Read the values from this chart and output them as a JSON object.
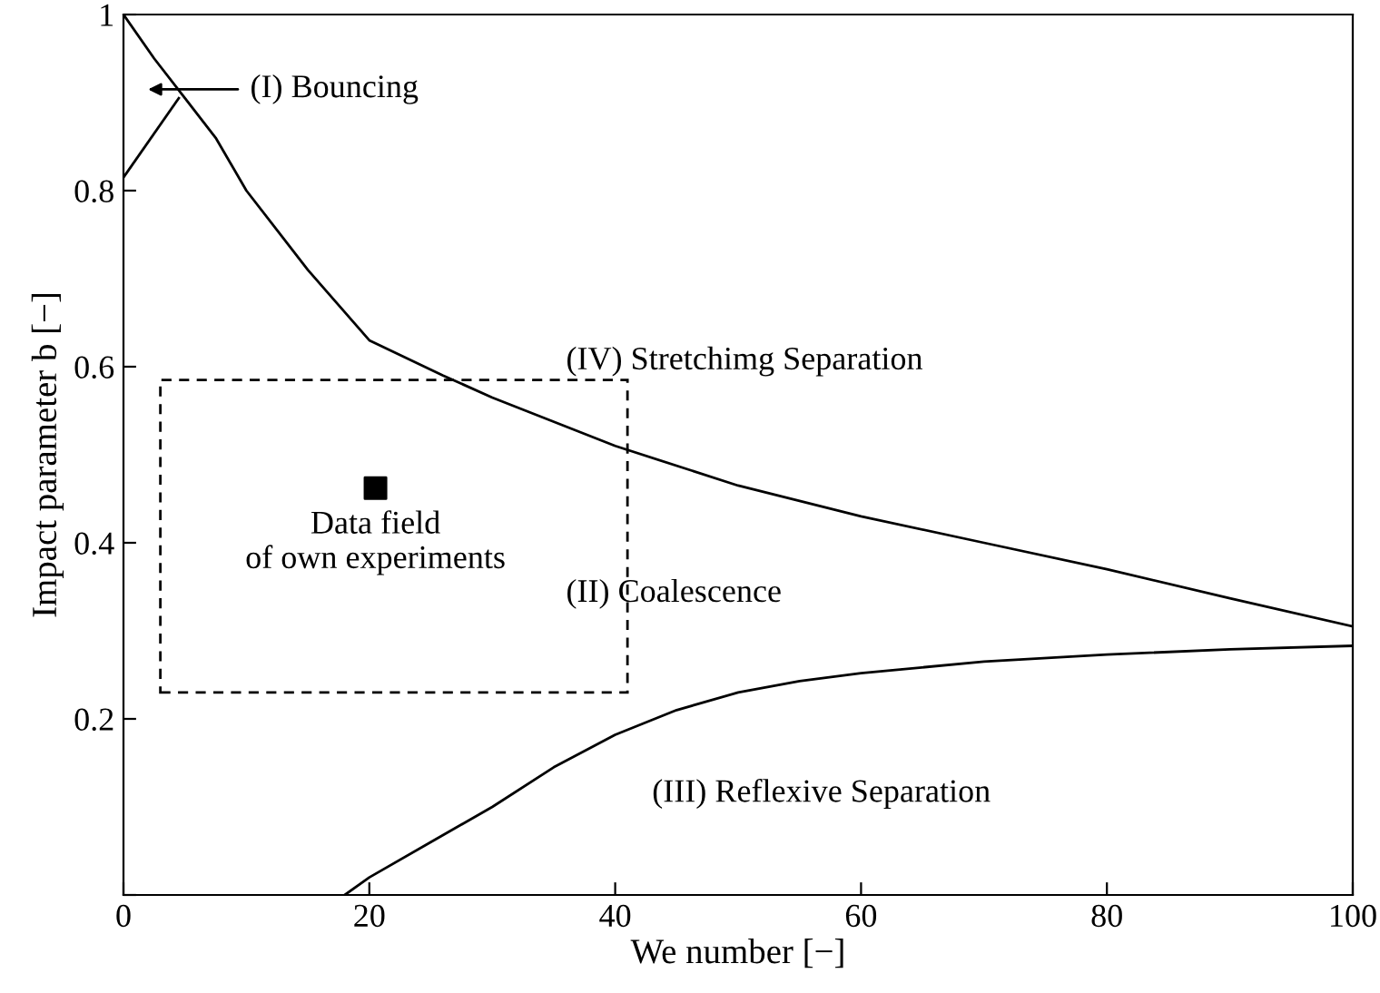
{
  "chart_data": {
    "type": "line",
    "xlabel": "We number [−]",
    "ylabel": "Impact parameter b [−]",
    "xlim": [
      0,
      100
    ],
    "ylim": [
      0,
      1
    ],
    "xticks": [
      0,
      20,
      40,
      60,
      80,
      100
    ],
    "yticks": [
      {
        "value": 0,
        "label": null
      },
      0.2,
      0.4,
      0.6,
      0.8,
      1
    ],
    "grid": false,
    "legend": false,
    "series": [
      {
        "color": "#000000",
        "x": [
          0,
          2.5,
          5,
          7.5,
          10,
          15,
          20,
          26,
          30,
          40,
          50,
          60,
          70,
          80,
          90,
          100
        ],
        "values": [
          1,
          0.95,
          0.905,
          0.86,
          0.8,
          0.71,
          0.63,
          0.59,
          0.565,
          0.51,
          0.465,
          0.43,
          0.4,
          0.37,
          0.337,
          0.305
        ]
      },
      {
        "color": "#000000",
        "x": [
          18,
          20,
          25,
          30,
          35,
          40,
          45,
          50,
          55,
          60,
          70,
          80,
          90,
          100
        ],
        "values": [
          0,
          0.02,
          0.06,
          0.1,
          0.145,
          0.182,
          0.21,
          0.23,
          0.243,
          0.252,
          0.265,
          0.273,
          0.279,
          0.283
        ]
      },
      {
        "color": "#000000",
        "x": [
          0,
          4.5
        ],
        "values": [
          0.815,
          0.905
        ]
      },
      {
        "type": "scatter",
        "marker": "square",
        "color": "#000000",
        "x": [
          20.5
        ],
        "values": [
          0.462
        ]
      }
    ],
    "annotations": [
      "(I) Bouncing",
      "(IV) Stretchimg Separation",
      "Data field\nof own experiments",
      "(II) Coalescence",
      "(III) Reflexive Separation"
    ]
  }
}
